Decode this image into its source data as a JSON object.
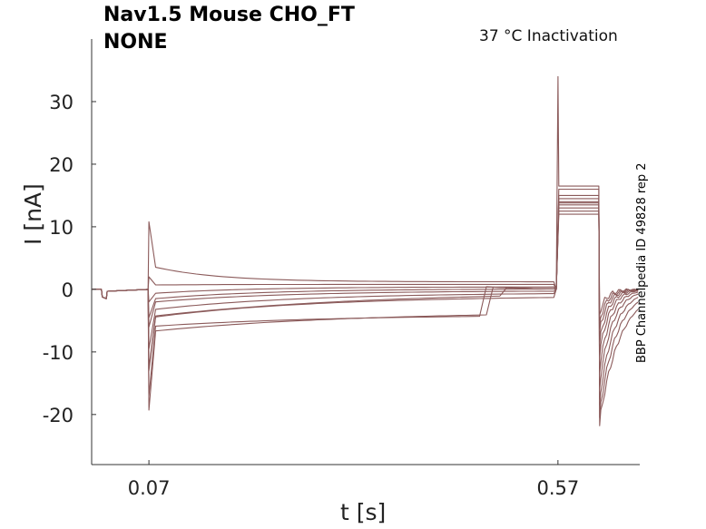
{
  "chart_data": {
    "type": "line",
    "title": "Nav1.5  Mouse  CHO_FT",
    "subtitle": "NONE",
    "condition": "37 °C  Inactivation",
    "side_label": "BBP Channelpedia ID 49828 rep 2",
    "xlabel": "t [s]",
    "ylabel": "I [nA]",
    "xlim": [
      0.0,
      0.67
    ],
    "ylim": [
      -28,
      40
    ],
    "x_ticks": [
      0.07,
      0.57
    ],
    "x_tick_labels": [
      "0.07",
      "0.57"
    ],
    "y_ticks": [
      30,
      20,
      10,
      0,
      -10,
      -20
    ],
    "y_tick_labels": [
      "30",
      "20",
      "10",
      "0",
      "-10",
      "-20"
    ],
    "grid": false,
    "line_color": "#8b5a5a",
    "protocol": {
      "prepulse_start": 0.07,
      "prepulse_end": 0.57,
      "test_end": 0.62,
      "trace_end": 0.67
    },
    "series": [
      {
        "peak1": 10.8,
        "pre_plateau": 1.2,
        "test_plateau": 16.5,
        "tail_peak": -21.8
      },
      {
        "peak1": 2.0,
        "pre_plateau": 0.8,
        "test_plateau": 16.0,
        "tail_peak": -20.5
      },
      {
        "peak1": -2.0,
        "pre_plateau": 0.4,
        "test_plateau": 15.0,
        "tail_peak": -18.5
      },
      {
        "peak1": -4.5,
        "pre_plateau": 0.1,
        "test_plateau": 14.5,
        "tail_peak": -16.0
      },
      {
        "peak1": -6.0,
        "pre_plateau": -0.2,
        "test_plateau": 14.0,
        "tail_peak": -13.5
      },
      {
        "peak1": -9.5,
        "pre_plateau": -0.5,
        "test_plateau": 13.5,
        "tail_peak": -11.0
      },
      {
        "peak1": -13.0,
        "pre_plateau": -1.0,
        "test_plateau": 13.0,
        "tail_peak": -9.0
      },
      {
        "peak1": -17.0,
        "pre_plateau": -4.0,
        "test_plateau": 12.5,
        "tail_peak": -7.0
      },
      {
        "peak1": -19.3,
        "pre_plateau": -3.5,
        "test_plateau": 12.0,
        "tail_peak": -5.5
      },
      {
        "peak1": -12.5,
        "pre_plateau": -0.3,
        "test_plateau": 13.8,
        "tail_peak": -4.0
      }
    ],
    "test_spike": 34.0
  }
}
